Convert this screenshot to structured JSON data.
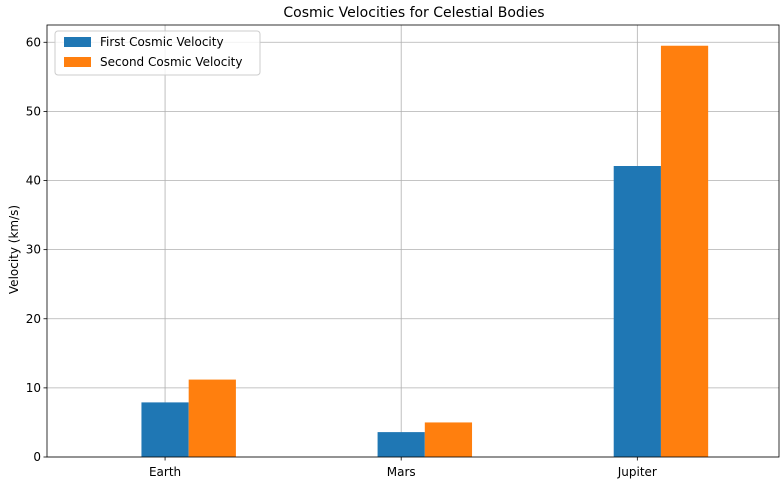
{
  "chart_data": {
    "type": "bar",
    "title": "Cosmic Velocities for Celestial Bodies",
    "xlabel": "",
    "ylabel": "Velocity (km/s)",
    "categories": [
      "Earth",
      "Mars",
      "Jupiter"
    ],
    "series": [
      {
        "name": "First Cosmic Velocity",
        "values": [
          7.9,
          3.6,
          42.1
        ],
        "color": "#1f77b4"
      },
      {
        "name": "Second Cosmic Velocity",
        "values": [
          11.2,
          5.0,
          59.5
        ],
        "color": "#ff7f0e"
      }
    ],
    "ylim": [
      0,
      62.5
    ],
    "yticks": [
      0,
      10,
      20,
      30,
      40,
      50,
      60
    ],
    "grid": true,
    "legend_position": "top-left"
  }
}
